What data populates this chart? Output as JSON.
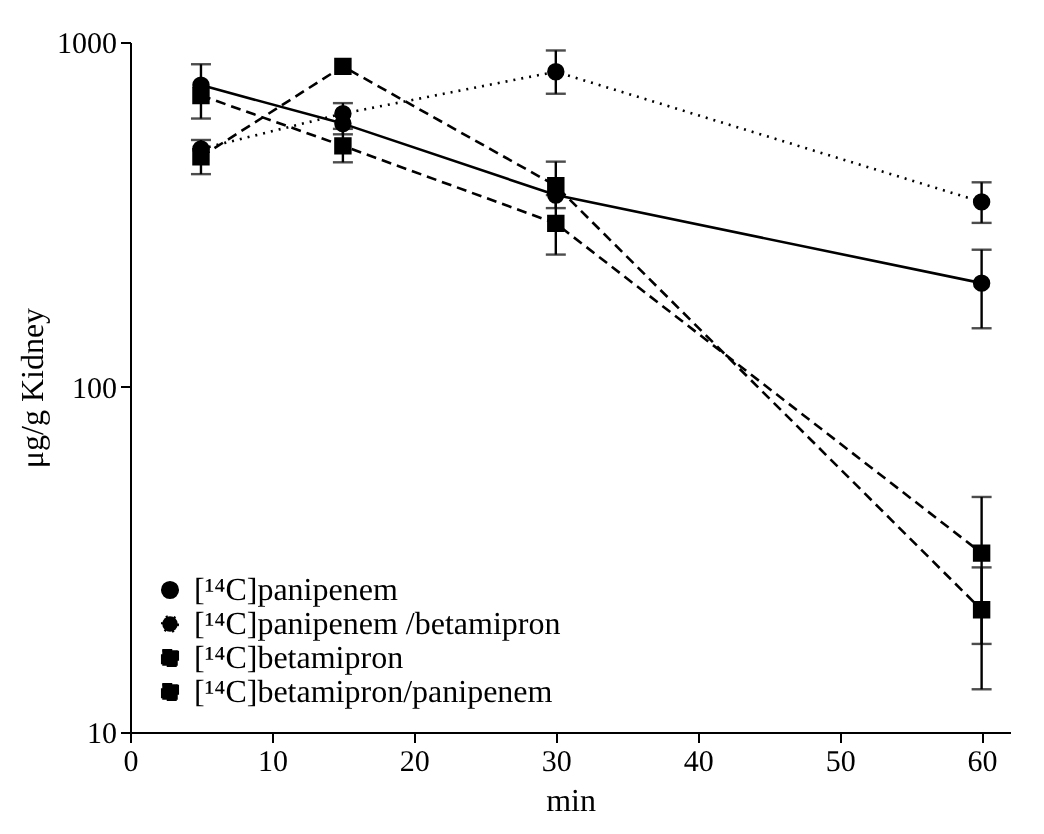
{
  "chart_data": {
    "type": "line",
    "xlabel": "min",
    "ylabel": "μg/g Kidney",
    "log": "y",
    "xlim": [
      0,
      62
    ],
    "xticks": [
      0,
      10,
      20,
      30,
      40,
      50,
      60
    ],
    "ylim": [
      10,
      1000
    ],
    "yticks": [
      10,
      100,
      1000
    ],
    "grid": false,
    "legend": "bottom left",
    "x": [
      5,
      15,
      30,
      60
    ],
    "series": [
      {
        "name": "[¹⁴C]panipenem",
        "color": "#000000",
        "marker": "circle",
        "line_style": "solid",
        "values": [
          750,
          580,
          360,
          200
        ],
        "errors": [
          null,
          null,
          null,
          [
            148,
            250
          ]
        ]
      },
      {
        "name": "[¹⁴C]panipenem /betamipron",
        "color": "#000000",
        "marker": "circle",
        "line_style": "dotted",
        "values": [
          490,
          620,
          820,
          344
        ],
        "errors": [
          null,
          [
            540,
            665
          ],
          [
            708,
            945
          ],
          [
            299,
            392
          ]
        ]
      },
      {
        "name": "[¹⁴C]betamipron",
        "color": "#000000",
        "marker": "square",
        "line_style": "dashed",
        "values": [
          700,
          500,
          298,
          33
        ],
        "errors": [
          [
            600,
            862
          ],
          [
            448,
            560
          ],
          [
            242,
            360
          ],
          [
            18,
            48
          ]
        ]
      },
      {
        "name": "[¹⁴C]betamipron/panipenem",
        "color": "#000000",
        "marker": "square",
        "line_style": "dashed",
        "values": [
          465,
          850,
          383,
          22.6
        ],
        "errors": [
          [
            414,
            520
          ],
          null,
          [
            330,
            450
          ],
          [
            13.3,
            30
          ]
        ]
      }
    ]
  }
}
